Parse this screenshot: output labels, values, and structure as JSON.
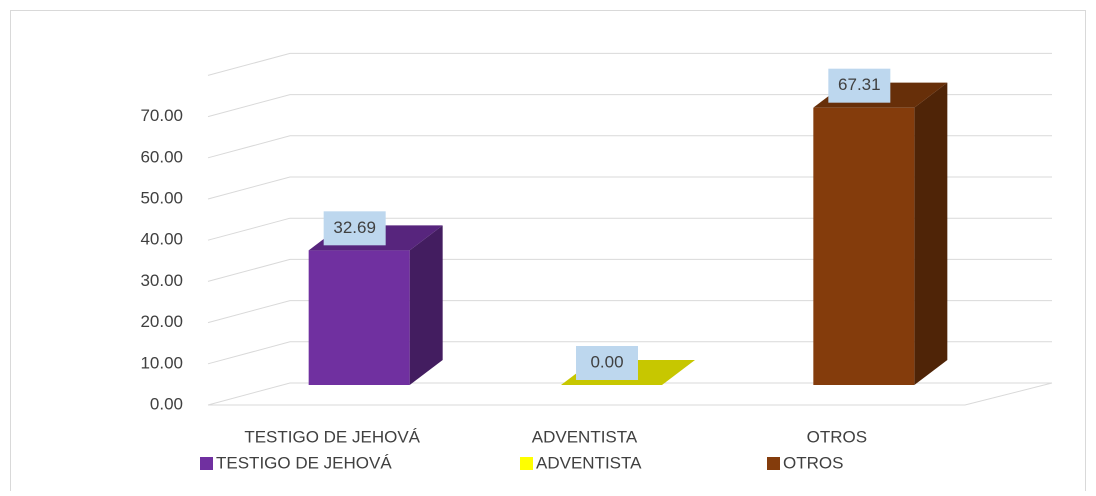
{
  "chart_data": {
    "type": "bar3d",
    "categories": [
      "TESTIGO DE JEHOVÁ",
      "ADVENTISTA",
      "OTROS"
    ],
    "values": [
      32.69,
      0,
      67.31
    ],
    "value_labels": [
      "32.69",
      "0.00",
      "67.31"
    ],
    "colors": [
      "#7030a0",
      "#ffff00",
      "#843c0c"
    ],
    "ylim": [
      0,
      80
    ],
    "yticks": [
      {
        "value": 0,
        "label": "0.00"
      },
      {
        "value": 10,
        "label": "10.00"
      },
      {
        "value": 20,
        "label": "20.00"
      },
      {
        "value": 30,
        "label": "30.00"
      },
      {
        "value": 40,
        "label": "40.00"
      },
      {
        "value": 50,
        "label": "50.00"
      },
      {
        "value": 60,
        "label": "60.00"
      },
      {
        "value": 70,
        "label": "70.00"
      }
    ],
    "grid": true,
    "legend": "bottom"
  }
}
